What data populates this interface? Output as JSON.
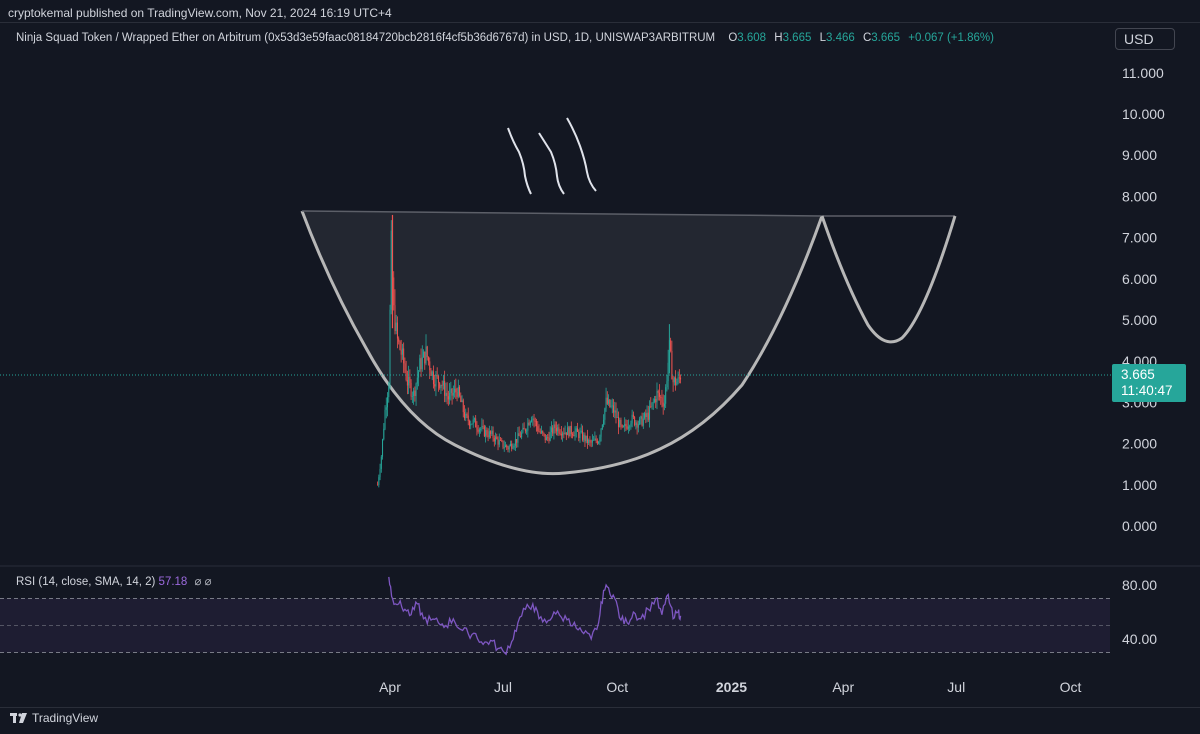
{
  "header": {
    "publish_line": "cryptokemal published on TradingView.com, Nov 21, 2024 16:19 UTC+4"
  },
  "legend": {
    "symbol_line": "Ninja Squad Token / Wrapped Ether on Arbitrum (0x53d3e59faac08184720bcb2816f4cf5b36d6767d) in USD, 1D, UNISWAP3ARBITRUM",
    "o_label": "O",
    "o_value": "3.608",
    "h_label": "H",
    "h_value": "3.665",
    "l_label": "L",
    "l_value": "3.466",
    "c_label": "C",
    "c_value": "3.665",
    "change": "+0.067 (+1.86%)"
  },
  "currency_button": "USD",
  "price_tag": {
    "price": "3.665",
    "countdown": "11:40:47"
  },
  "rsi_legend": {
    "label": "RSI (14, close, SMA, 14, 2)",
    "value": "57.18",
    "icons": "⌀ ⌀"
  },
  "footer": {
    "brand": "TradingView"
  },
  "colors": {
    "background": "#131722",
    "up": "#26a69a",
    "down": "#ef5350",
    "rsi_line": "#7e57c2",
    "drawing": "#b7b7b7"
  },
  "chart_data": [
    {
      "type": "candlestick",
      "title": "Ninja Squad Token / Wrapped Ether on Arbitrum",
      "interval": "1D",
      "ylim": [
        0,
        11.5
      ],
      "y_ticks": [
        "0.000",
        "1.000",
        "2.000",
        "3.000",
        "4.000",
        "5.000",
        "6.000",
        "7.000",
        "8.000",
        "9.000",
        "10.000",
        "11.000"
      ],
      "x_ticks": [
        "Apr",
        "Jul",
        "Oct",
        "2025",
        "Apr",
        "Jul",
        "Oct"
      ],
      "last_price": 3.665,
      "price_path": [
        [
          "2024-03-22",
          1.0
        ],
        [
          "2024-03-25",
          1.7
        ],
        [
          "2024-03-28",
          2.8
        ],
        [
          "2024-03-31",
          3.5
        ],
        [
          "2024-04-02",
          6.8
        ],
        [
          "2024-04-04",
          5.2
        ],
        [
          "2024-04-07",
          4.5
        ],
        [
          "2024-04-11",
          4.1
        ],
        [
          "2024-04-15",
          3.5
        ],
        [
          "2024-04-20",
          3.2
        ],
        [
          "2024-04-25",
          3.9
        ],
        [
          "2024-04-30",
          4.2
        ],
        [
          "2024-05-06",
          3.6
        ],
        [
          "2024-05-12",
          3.5
        ],
        [
          "2024-05-18",
          3.1
        ],
        [
          "2024-05-25",
          3.3
        ],
        [
          "2024-06-01",
          2.6
        ],
        [
          "2024-06-08",
          2.5
        ],
        [
          "2024-06-15",
          2.3
        ],
        [
          "2024-06-22",
          2.2
        ],
        [
          "2024-06-29",
          2.0
        ],
        [
          "2024-07-05",
          1.9
        ],
        [
          "2024-07-12",
          2.1
        ],
        [
          "2024-07-18",
          2.3
        ],
        [
          "2024-07-24",
          2.7
        ],
        [
          "2024-07-30",
          2.3
        ],
        [
          "2024-08-05",
          2.1
        ],
        [
          "2024-08-12",
          2.4
        ],
        [
          "2024-08-19",
          2.3
        ],
        [
          "2024-08-26",
          2.3
        ],
        [
          "2024-09-02",
          2.2
        ],
        [
          "2024-09-09",
          2.0
        ],
        [
          "2024-09-16",
          2.1
        ],
        [
          "2024-09-22",
          3.0
        ],
        [
          "2024-09-28",
          2.8
        ],
        [
          "2024-10-05",
          2.3
        ],
        [
          "2024-10-12",
          2.6
        ],
        [
          "2024-10-19",
          2.5
        ],
        [
          "2024-10-26",
          2.7
        ],
        [
          "2024-11-02",
          3.2
        ],
        [
          "2024-11-08",
          3.0
        ],
        [
          "2024-11-12",
          4.3
        ],
        [
          "2024-11-15",
          3.5
        ],
        [
          "2024-11-19",
          3.5
        ],
        [
          "2024-11-21",
          3.665
        ]
      ]
    },
    {
      "type": "line",
      "title": "RSI (14, close, SMA, 14, 2)",
      "ylim": [
        20,
        85
      ],
      "y_ticks": [
        "40.00",
        "80.00"
      ],
      "bands": [
        30,
        50,
        70
      ],
      "last_value": 57.18,
      "series": [
        {
          "name": "RSI",
          "points": [
            [
              "2024-03-31",
              86
            ],
            [
              "2024-04-03",
              70
            ],
            [
              "2024-04-08",
              66
            ],
            [
              "2024-04-13",
              62
            ],
            [
              "2024-04-18",
              58
            ],
            [
              "2024-04-23",
              66
            ],
            [
              "2024-04-28",
              55
            ],
            [
              "2024-05-04",
              54
            ],
            [
              "2024-05-10",
              52
            ],
            [
              "2024-05-16",
              50
            ],
            [
              "2024-05-22",
              55
            ],
            [
              "2024-05-28",
              47
            ],
            [
              "2024-06-03",
              44
            ],
            [
              "2024-06-09",
              44
            ],
            [
              "2024-06-15",
              36
            ],
            [
              "2024-06-21",
              39
            ],
            [
              "2024-06-27",
              33
            ],
            [
              "2024-07-02",
              30
            ],
            [
              "2024-07-08",
              38
            ],
            [
              "2024-07-13",
              52
            ],
            [
              "2024-07-19",
              62
            ],
            [
              "2024-07-25",
              66
            ],
            [
              "2024-07-30",
              55
            ],
            [
              "2024-08-05",
              52
            ],
            [
              "2024-08-11",
              60
            ],
            [
              "2024-08-17",
              56
            ],
            [
              "2024-08-23",
              55
            ],
            [
              "2024-08-29",
              48
            ],
            [
              "2024-09-04",
              44
            ],
            [
              "2024-09-10",
              40
            ],
            [
              "2024-09-16",
              52
            ],
            [
              "2024-09-20",
              76
            ],
            [
              "2024-09-24",
              78
            ],
            [
              "2024-09-29",
              70
            ],
            [
              "2024-10-04",
              54
            ],
            [
              "2024-10-09",
              52
            ],
            [
              "2024-10-14",
              60
            ],
            [
              "2024-10-20",
              55
            ],
            [
              "2024-10-26",
              62
            ],
            [
              "2024-11-01",
              70
            ],
            [
              "2024-11-06",
              58
            ],
            [
              "2024-11-11",
              73
            ],
            [
              "2024-11-15",
              55
            ],
            [
              "2024-11-19",
              60
            ],
            [
              "2024-11-21",
              57.18
            ]
          ]
        }
      ]
    }
  ]
}
